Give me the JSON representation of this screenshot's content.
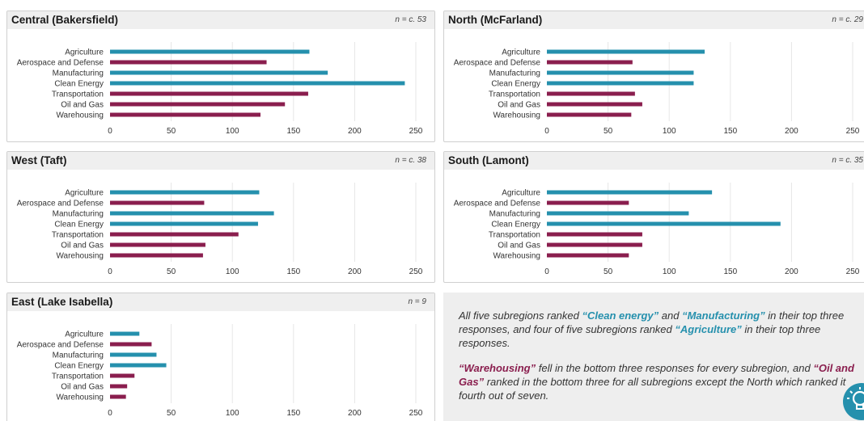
{
  "colors": {
    "teal": "#2590ad",
    "maroon": "#8a1e4e",
    "grid": "#e6e6e6",
    "header_bg": "#efefef"
  },
  "chart_data": [
    {
      "type": "bar",
      "orientation": "horizontal",
      "title": "Central (Bakersfield)",
      "n_label": "n = c. 53",
      "categories": [
        "Agriculture",
        "Aerospace and Defense",
        "Manufacturing",
        "Clean Energy",
        "Transportation",
        "Oil and Gas",
        "Warehousing"
      ],
      "values": [
        163,
        128,
        178,
        241,
        162,
        143,
        123
      ],
      "bar_colors": [
        "teal",
        "maroon",
        "teal",
        "teal",
        "maroon",
        "maroon",
        "maroon"
      ],
      "xlim": [
        0,
        250
      ],
      "xticks": [
        0,
        50,
        100,
        150,
        200,
        250
      ],
      "grid": true
    },
    {
      "type": "bar",
      "orientation": "horizontal",
      "title": "North (McFarland)",
      "n_label": "n = c. 29",
      "categories": [
        "Agriculture",
        "Aerospace and Defense",
        "Manufacturing",
        "Clean Energy",
        "Transportation",
        "Oil and Gas",
        "Warehousing"
      ],
      "values": [
        129,
        70,
        120,
        120,
        72,
        78,
        69
      ],
      "bar_colors": [
        "teal",
        "maroon",
        "teal",
        "teal",
        "maroon",
        "maroon",
        "maroon"
      ],
      "xlim": [
        0,
        250
      ],
      "xticks": [
        0,
        50,
        100,
        150,
        200,
        250
      ],
      "grid": true
    },
    {
      "type": "bar",
      "orientation": "horizontal",
      "title": "West (Taft)",
      "n_label": "n = c. 38",
      "categories": [
        "Agriculture",
        "Aerospace and Defense",
        "Manufacturing",
        "Clean Energy",
        "Transportation",
        "Oil and Gas",
        "Warehousing"
      ],
      "values": [
        122,
        77,
        134,
        121,
        105,
        78,
        76
      ],
      "bar_colors": [
        "teal",
        "maroon",
        "teal",
        "teal",
        "maroon",
        "maroon",
        "maroon"
      ],
      "xlim": [
        0,
        250
      ],
      "xticks": [
        0,
        50,
        100,
        150,
        200,
        250
      ],
      "grid": true
    },
    {
      "type": "bar",
      "orientation": "horizontal",
      "title": "South (Lamont)",
      "n_label": "n = c. 35",
      "categories": [
        "Agriculture",
        "Aerospace and Defense",
        "Manufacturing",
        "Clean Energy",
        "Transportation",
        "Oil and Gas",
        "Warehousing"
      ],
      "values": [
        135,
        67,
        116,
        191,
        78,
        78,
        67
      ],
      "bar_colors": [
        "teal",
        "maroon",
        "teal",
        "teal",
        "maroon",
        "maroon",
        "maroon"
      ],
      "xlim": [
        0,
        250
      ],
      "xticks": [
        0,
        50,
        100,
        150,
        200,
        250
      ],
      "grid": true
    },
    {
      "type": "bar",
      "orientation": "horizontal",
      "title": "East (Lake Isabella)",
      "n_label": "n = 9",
      "categories": [
        "Agriculture",
        "Aerospace and Defense",
        "Manufacturing",
        "Clean Energy",
        "Transportation",
        "Oil and Gas",
        "Warehousing"
      ],
      "values": [
        24,
        34,
        38,
        46,
        20,
        14,
        13
      ],
      "bar_colors": [
        "teal",
        "maroon",
        "teal",
        "teal",
        "maroon",
        "maroon",
        "maroon"
      ],
      "xlim": [
        0,
        250
      ],
      "xticks": [
        0,
        50,
        100,
        150,
        200,
        250
      ],
      "grid": true
    }
  ],
  "note": {
    "p1": [
      {
        "t": "All five subregions ranked ",
        "s": "plain"
      },
      {
        "t": "“Clean energy”",
        "s": "teal"
      },
      {
        "t": " and ",
        "s": "plain"
      },
      {
        "t": "“Manufacturing”",
        "s": "teal"
      },
      {
        "t": "  in their top three responses, and four of five subregions ranked ",
        "s": "plain"
      },
      {
        "t": "“Agriculture”",
        "s": "teal"
      },
      {
        "t": " in their top three responses.",
        "s": "plain"
      }
    ],
    "p2": [
      {
        "t": "“Warehousing”",
        "s": "maroon"
      },
      {
        "t": " fell in the bottom three responses for every subregion, and ",
        "s": "plain"
      },
      {
        "t": "“Oil and Gas”",
        "s": "maroon"
      },
      {
        "t": " ranked in the bottom three for all subregions except the North which ranked it fourth out of seven.",
        "s": "plain"
      }
    ]
  },
  "icons": {
    "corner": "lightbulb-icon"
  }
}
